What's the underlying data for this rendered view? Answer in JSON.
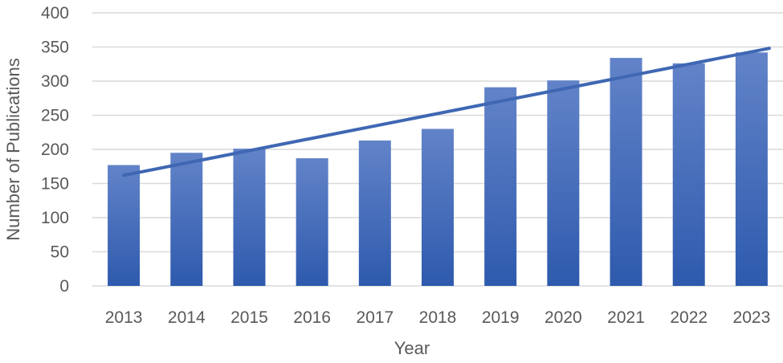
{
  "chart_data": {
    "type": "bar",
    "title": "",
    "xlabel": "Year",
    "ylabel": "Number of Publications",
    "categories": [
      "2013",
      "2014",
      "2015",
      "2016",
      "2017",
      "2018",
      "2019",
      "2020",
      "2021",
      "2022",
      "2023"
    ],
    "values": [
      177,
      195,
      201,
      187,
      213,
      230,
      291,
      301,
      334,
      326,
      342
    ],
    "ylim": [
      0,
      400
    ],
    "yticks": [
      0,
      50,
      100,
      150,
      200,
      250,
      300,
      350,
      400
    ],
    "grid": true,
    "legend": "none",
    "trendline": {
      "type": "linear",
      "start": 162,
      "end": 348
    },
    "colors": {
      "bar_top": "#6283c8",
      "bar_bottom": "#2e5aad",
      "trendline": "#3f67b3",
      "grid": "#d9d9d9",
      "text": "#595959"
    }
  }
}
